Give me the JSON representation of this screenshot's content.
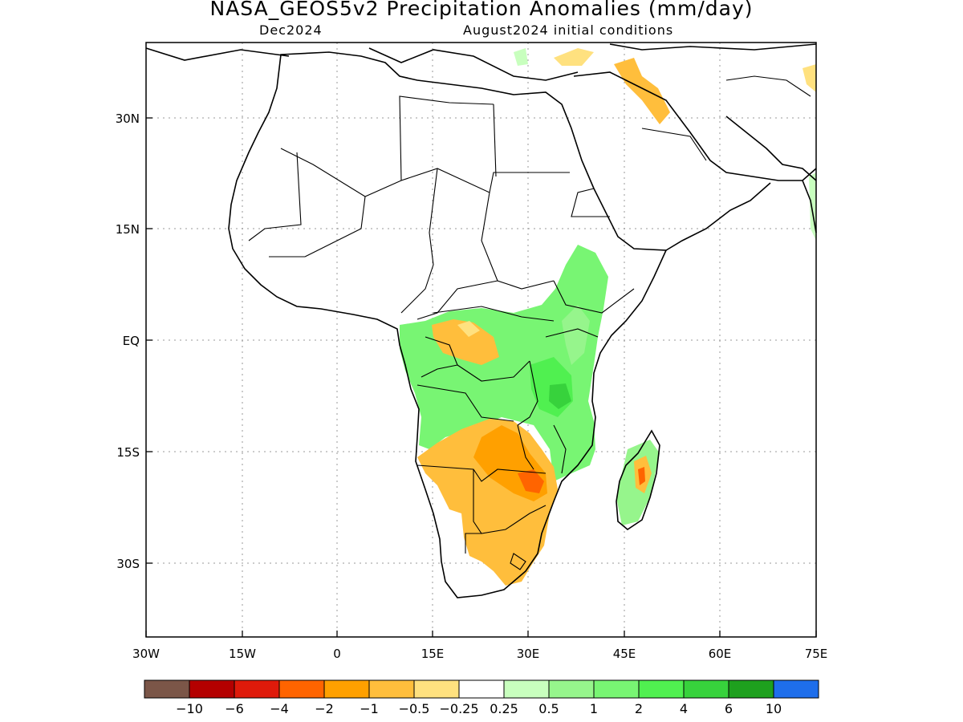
{
  "title": "NASA_GEOS5v2 Precipitation Anomalies (mm/day)",
  "subtitle_left": "Dec2024",
  "subtitle_right": "August2024 initial conditions",
  "axes": {
    "lon_ticks": [
      "30W",
      "15W",
      "0",
      "15E",
      "30E",
      "45E",
      "60E",
      "75E"
    ],
    "lat_ticks": [
      "30N",
      "15N",
      "EQ",
      "15S",
      "30S"
    ]
  },
  "colorbar": {
    "colors": [
      "#7b5648",
      "#b40000",
      "#df1a0a",
      "#ff6400",
      "#ffa000",
      "#ffbe3c",
      "#ffe17f",
      "#ffffff",
      "#c8ffbe",
      "#96f58c",
      "#78f573",
      "#50f050",
      "#37d23c",
      "#1ea01e",
      "#1e6eeb"
    ],
    "labels": [
      "−10",
      "−6",
      "−4",
      "−2",
      "−1",
      "−0.5",
      "−0.25",
      "0.25",
      "0.5",
      "1",
      "2",
      "4",
      "6",
      "10"
    ]
  }
}
